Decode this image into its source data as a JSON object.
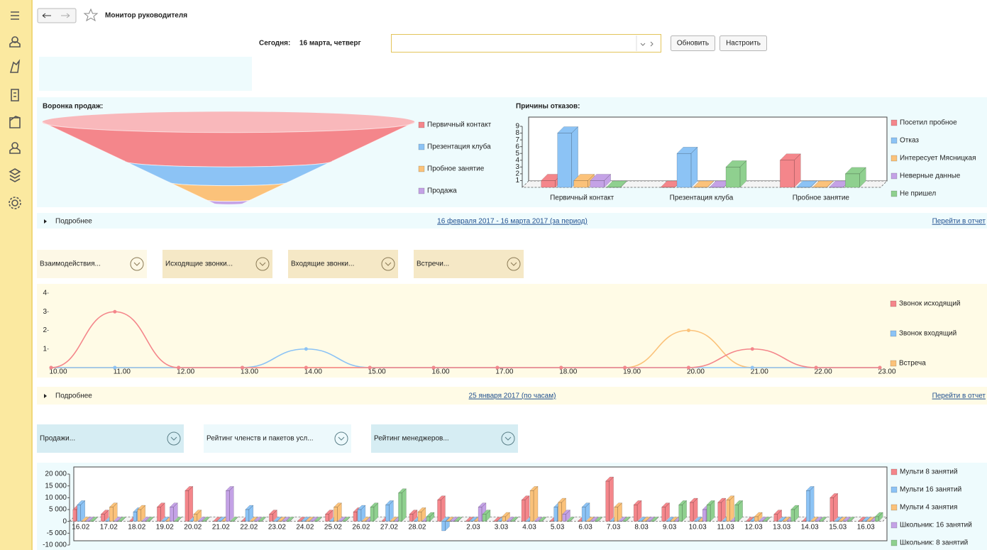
{
  "header": {
    "title": "Монитор руководителя"
  },
  "toolbar": {
    "today_label": "Сегодня:",
    "today": "16 марта, четверг",
    "buttons": [
      "Обновить",
      "Настроить"
    ]
  },
  "footers": [
    {
      "more": "Подробнее",
      "period": "16 февраля 2017 - 16 марта 2017 (за период)",
      "report_link": "Перейти в отчет"
    },
    {
      "more": "Подробнее",
      "period": "25 января 2017 (по часам)",
      "report_link": "Перейти в отчет"
    }
  ],
  "tabs": [
    [
      "Взаимодействия...",
      "Исходящие звонки...",
      "Входящие звонки...",
      "Встречи..."
    ],
    [
      "Продажи...",
      "Рейтинг членств и пакетов усл...",
      "Рейтинг менеджеров..."
    ]
  ],
  "chart_data": [
    {
      "type": "funnel",
      "title": "Воронка продаж:",
      "categories": [
        "Первичный контакт",
        "Презентация клуба",
        "Пробное занятие",
        "Продажа"
      ],
      "values": [
        11,
        6,
        5,
        1
      ],
      "colors": [
        "#f4868b",
        "#8cc3f5",
        "#fbc27a",
        "#c4a2e6"
      ]
    },
    {
      "type": "bar",
      "title": "Причины отказов:",
      "categories": [
        "Первичный контакт",
        "Презентация клуба",
        "Пробное занятие"
      ],
      "series": [
        {
          "name": "Посетил пробное",
          "color": "#f4868b",
          "values": [
            1,
            0,
            4
          ]
        },
        {
          "name": "Отказ",
          "color": "#8cc3f5",
          "values": [
            8,
            5,
            0
          ]
        },
        {
          "name": "Интересует Мясницкая",
          "color": "#fbc27a",
          "values": [
            1,
            0,
            0
          ]
        },
        {
          "name": "Неверные данные",
          "color": "#c4a2e6",
          "values": [
            1,
            0,
            0
          ]
        },
        {
          "name": "Не пришел",
          "color": "#8fd08f",
          "values": [
            0,
            3,
            2
          ]
        }
      ],
      "ylim": [
        0,
        9
      ],
      "yticks": [
        1,
        2,
        3,
        4,
        5,
        6,
        7,
        8,
        9
      ]
    },
    {
      "type": "line",
      "categories": [
        "10.00",
        "11.00",
        "12.00",
        "13.00",
        "14.00",
        "15.00",
        "16.00",
        "17.00",
        "18.00",
        "19.00",
        "20.00",
        "21.00",
        "22.00",
        "23.00"
      ],
      "series": [
        {
          "name": "Звонок исходящий",
          "color": "#f4868b",
          "values": [
            0,
            3,
            0,
            0,
            0,
            0,
            0,
            0,
            0,
            0,
            0,
            1,
            0,
            0
          ]
        },
        {
          "name": "Звонок входящий",
          "color": "#8cc3f5",
          "values": [
            0,
            0,
            0,
            0,
            1,
            0,
            0,
            0,
            0,
            0,
            0,
            0,
            0,
            0
          ]
        },
        {
          "name": "Встреча",
          "color": "#fbc27a",
          "values": [
            0,
            0,
            0,
            0,
            0,
            0,
            0,
            0,
            0,
            0,
            2,
            0,
            0,
            0
          ]
        }
      ],
      "ylim": [
        0,
        4
      ],
      "yticks": [
        1,
        2,
        3,
        4
      ]
    },
    {
      "type": "bar",
      "categories": [
        "16.02",
        "17.02",
        "18.02",
        "19.02",
        "20.02",
        "21.02",
        "22.02",
        "23.02",
        "24.02",
        "25.02",
        "26.02",
        "27.02",
        "28.02",
        null,
        "2.03",
        "3.03",
        "4.03",
        "5.03",
        "6.03",
        "7.03",
        "8.03",
        "9.03",
        "10.03",
        "11.03",
        "12.03",
        "13.03",
        "14.03",
        "15.03",
        "16.03"
      ],
      "series": [
        {
          "name": "Мульти 8 занятий",
          "color": "#f4868b",
          "values": [
            5000,
            3000,
            0,
            6000,
            13000,
            0,
            0,
            3000,
            0,
            3000,
            4000,
            0,
            3000,
            9000,
            0,
            0,
            9000,
            0,
            0,
            17000,
            7000,
            6000,
            8000,
            8000,
            0,
            3000,
            0,
            10000,
            0
          ]
        },
        {
          "name": "Мульти 16 занятий",
          "color": "#8cc3f5",
          "values": [
            7000,
            0,
            4000,
            0,
            0,
            0,
            5000,
            0,
            0,
            0,
            5000,
            7000,
            0,
            -4000,
            0,
            0,
            0,
            6000,
            6000,
            0,
            0,
            0,
            0,
            0,
            0,
            0,
            13000,
            0,
            0
          ]
        },
        {
          "name": "Мульти 4 занятия",
          "color": "#fbc27a",
          "values": [
            0,
            6000,
            5000,
            0,
            3000,
            0,
            0,
            0,
            0,
            6000,
            0,
            0,
            4000,
            0,
            0,
            2000,
            13000,
            8000,
            0,
            6000,
            0,
            0,
            0,
            9000,
            2000,
            0,
            0,
            0,
            0
          ]
        },
        {
          "name": "Школьник: 16 занятий",
          "color": "#c4a2e6",
          "values": [
            0,
            0,
            0,
            6000,
            0,
            13000,
            0,
            0,
            0,
            0,
            0,
            0,
            0,
            0,
            6000,
            0,
            0,
            3000,
            0,
            0,
            0,
            0,
            5000,
            0,
            0,
            0,
            0,
            0,
            0
          ]
        },
        {
          "name": "Школьник: 8 занятий",
          "color": "#8fd08f",
          "values": [
            0,
            0,
            0,
            0,
            0,
            0,
            0,
            0,
            0,
            0,
            6000,
            12000,
            2000,
            0,
            3000,
            0,
            0,
            0,
            0,
            0,
            0,
            7000,
            7000,
            7000,
            0,
            5000,
            0,
            0,
            2000
          ]
        }
      ],
      "ylim": [
        -10000,
        20000
      ],
      "yticks": [
        {
          "value": -10000,
          "label": "-10 000"
        },
        {
          "value": -5000,
          "label": "-5 000"
        },
        0,
        {
          "value": 5000,
          "label": "5 000"
        },
        {
          "value": 10000,
          "label": "10 000"
        },
        {
          "value": 15000,
          "label": "15 000"
        },
        {
          "value": 20000,
          "label": "20 000"
        }
      ]
    }
  ]
}
